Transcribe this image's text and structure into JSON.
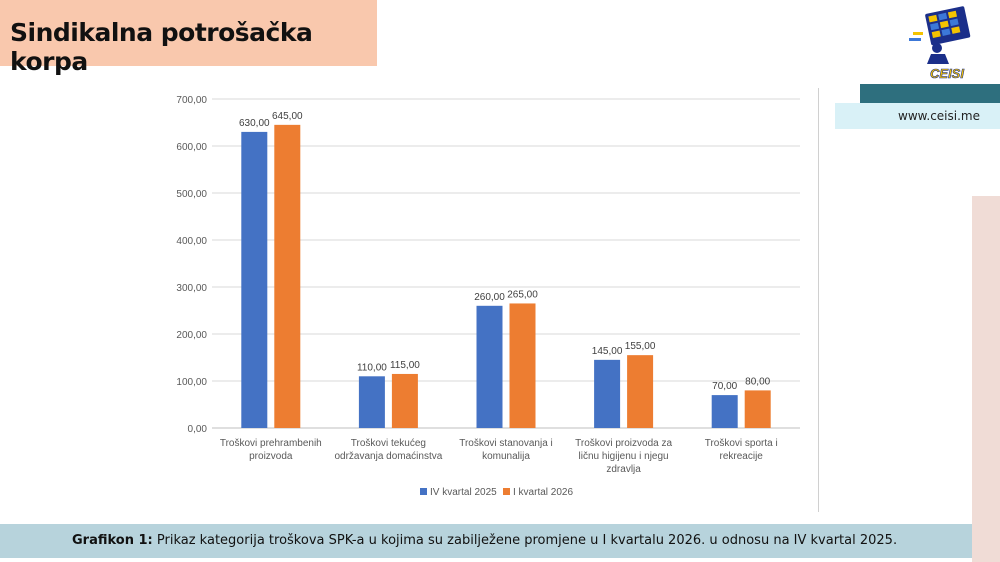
{
  "header": {
    "title": "Sindikalna potrošačka korpa"
  },
  "logo": {
    "text": "CEISI",
    "icon": "ceisi-logo-icon"
  },
  "site": {
    "url": "www.ceisi.me"
  },
  "caption": {
    "label": "Grafikon 1:",
    "text": "Prikaz kategorija troškova SPK-a u kojima su zabilježene promjene u I kvartalu 2026. u odnosu na IV kvartal 2025."
  },
  "colors": {
    "series1": "#4472c4",
    "series2": "#ed7d31",
    "title_bg": "#f9c8ad",
    "caption_bg": "#b7d3dc",
    "accent": "#2e6f7e"
  },
  "chart_data": {
    "type": "bar",
    "categories": [
      [
        "Troškovi prehrambenih",
        "proizvoda"
      ],
      [
        "Troškovi tekućeg",
        "održavanja domaćinstva"
      ],
      [
        "Troškovi stanovanja i",
        "komunalija"
      ],
      [
        "Troškovi proizvoda za",
        "ličnu higijenu i njegu",
        "zdravlja"
      ],
      [
        "Troškovi sporta i",
        "rekreacije"
      ]
    ],
    "series": [
      {
        "name": "IV kvartal 2025",
        "values": [
          630,
          110,
          260,
          145,
          70
        ],
        "labels": [
          "630,00",
          "110,00",
          "260,00",
          "145,00",
          "70,00"
        ]
      },
      {
        "name": "I kvartal 2026",
        "values": [
          645,
          115,
          265,
          155,
          80
        ],
        "labels": [
          "645,00",
          "115,00",
          "265,00",
          "155,00",
          "80,00"
        ]
      }
    ],
    "yticks": [
      "0,00",
      "100,00",
      "200,00",
      "300,00",
      "400,00",
      "500,00",
      "600,00",
      "700,00"
    ],
    "ylim": [
      0,
      700
    ],
    "grid": true,
    "legend_position": "bottom"
  }
}
